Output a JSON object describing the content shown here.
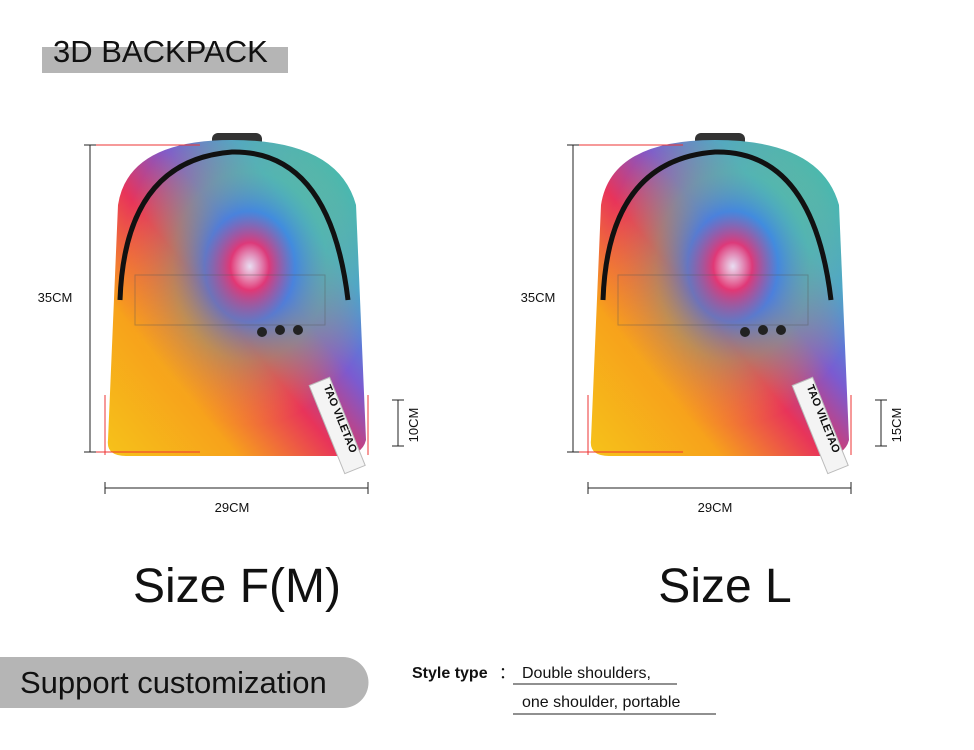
{
  "header": {
    "title": "3D BACKPACK"
  },
  "products": [
    {
      "height": "35CM",
      "width": "29CM",
      "depth": "10CM",
      "label": "Size F(M)"
    },
    {
      "height": "35CM",
      "width": "29CM",
      "depth": "15CM",
      "label": "Size L"
    }
  ],
  "strap_text": "TAO VILETAO",
  "footer": {
    "badge": "Support customization",
    "style_label": "Style type",
    "separator": "：",
    "style_lines": [
      "Double shoulders,",
      "one shoulder, portable"
    ]
  }
}
